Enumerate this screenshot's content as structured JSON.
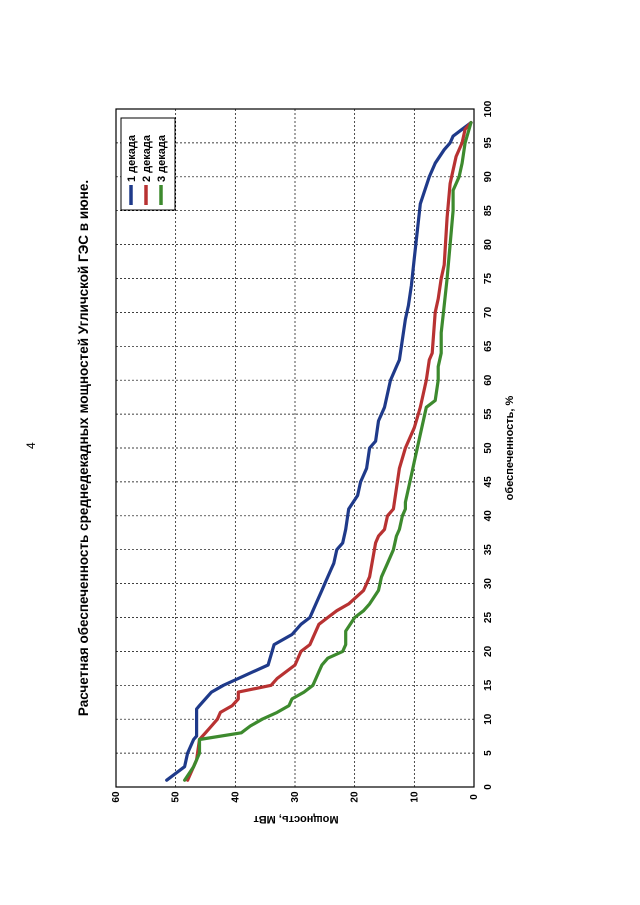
{
  "page": {
    "number": "4"
  },
  "colors": {
    "series1": "#1f3a8a",
    "series2": "#b83232",
    "series3": "#3d8a2e",
    "grid": "#000000"
  },
  "chart_data": {
    "type": "line",
    "title": "Расчетная обеспеченность среднедекадных мощностей Угличской ГЭС в июне.",
    "xlabel": "обеспеченность, %",
    "ylabel": "Мощность, МВт",
    "xlim": [
      0,
      100
    ],
    "ylim": [
      0,
      60
    ],
    "xticks": [
      0,
      5,
      10,
      15,
      20,
      25,
      30,
      35,
      40,
      45,
      50,
      55,
      60,
      65,
      70,
      75,
      80,
      85,
      90,
      95,
      100
    ],
    "yticks": [
      0,
      10,
      20,
      30,
      40,
      50,
      60
    ],
    "legend": [
      "1 декада",
      "2 декада",
      "3 декада"
    ],
    "series": [
      {
        "name": "1 декада",
        "color": "#1f3a8a",
        "x": [
          1,
          2,
          3,
          5,
          7,
          7.5,
          11,
          11.5,
          12,
          14,
          15,
          17,
          18,
          21,
          22.5,
          24,
          25,
          26,
          27,
          29,
          30,
          32,
          33,
          35,
          36,
          38,
          41,
          43,
          45,
          46,
          47,
          50,
          51,
          54,
          56,
          60,
          62,
          63,
          66,
          69,
          71,
          74,
          78,
          86,
          90,
          92,
          94,
          95,
          96,
          97,
          98
        ],
        "y": [
          51.5,
          50,
          48.5,
          48,
          47,
          46.5,
          46.5,
          46.5,
          46,
          44,
          42,
          37,
          34.5,
          33.5,
          30.5,
          29,
          27.5,
          27,
          26.5,
          25.5,
          25,
          24,
          23.5,
          23,
          22,
          21.5,
          21,
          19.5,
          19,
          18.5,
          18,
          17.5,
          16.5,
          16,
          15,
          14,
          13,
          12.5,
          12,
          11.5,
          11,
          10.5,
          10,
          9,
          7.5,
          6.5,
          5,
          4,
          3.5,
          2,
          0.5
        ]
      },
      {
        "name": "2 декада",
        "color": "#b83232",
        "x": [
          1,
          4,
          7,
          8,
          9,
          10,
          11,
          12,
          13,
          14,
          15,
          16,
          18,
          20,
          21,
          22,
          24,
          25,
          26,
          27,
          29,
          31,
          36,
          37,
          38,
          40,
          41,
          47,
          50,
          53,
          56,
          58,
          60,
          63,
          64,
          70,
          72,
          75,
          77,
          84,
          89,
          93,
          95,
          97,
          98
        ],
        "y": [
          48,
          46.5,
          46,
          45,
          44,
          43,
          42.5,
          40.5,
          39.5,
          39.5,
          34,
          33,
          30,
          29,
          27.5,
          27,
          26,
          24.5,
          23,
          21,
          18.5,
          17.5,
          16.5,
          16,
          15,
          14.5,
          13.5,
          12.5,
          11.5,
          10,
          9,
          8.5,
          8,
          7.5,
          7,
          6.5,
          6,
          5.5,
          5,
          4.5,
          4,
          3,
          2,
          1.5,
          0.5
        ]
      },
      {
        "name": "3 декада",
        "color": "#3d8a2e",
        "x": [
          1,
          3,
          5,
          7,
          8,
          9,
          10,
          11,
          12,
          13,
          14,
          15,
          16,
          17,
          18,
          19,
          20,
          21,
          23,
          25,
          26,
          27,
          29,
          31,
          33,
          35,
          37,
          38,
          40,
          41,
          42,
          44,
          46,
          48,
          50,
          52,
          54,
          56,
          57,
          60,
          62,
          64,
          67,
          71,
          75,
          80,
          85,
          88,
          89,
          90,
          92,
          95,
          98
        ],
        "y": [
          48.5,
          47,
          46,
          46,
          39,
          37.5,
          35.5,
          33,
          31,
          30.5,
          28.5,
          27,
          26.5,
          26,
          25.5,
          24.5,
          22,
          21.5,
          21.5,
          20,
          18.5,
          17.5,
          16,
          15.5,
          14.5,
          13.5,
          13,
          12.5,
          12,
          11.5,
          11.5,
          11,
          10.5,
          10,
          9.5,
          9,
          8.5,
          8,
          6.5,
          6,
          6,
          5.5,
          5.5,
          5,
          4.5,
          4,
          3.5,
          3.5,
          3,
          2.5,
          2,
          1.5,
          0.5
        ]
      }
    ]
  }
}
